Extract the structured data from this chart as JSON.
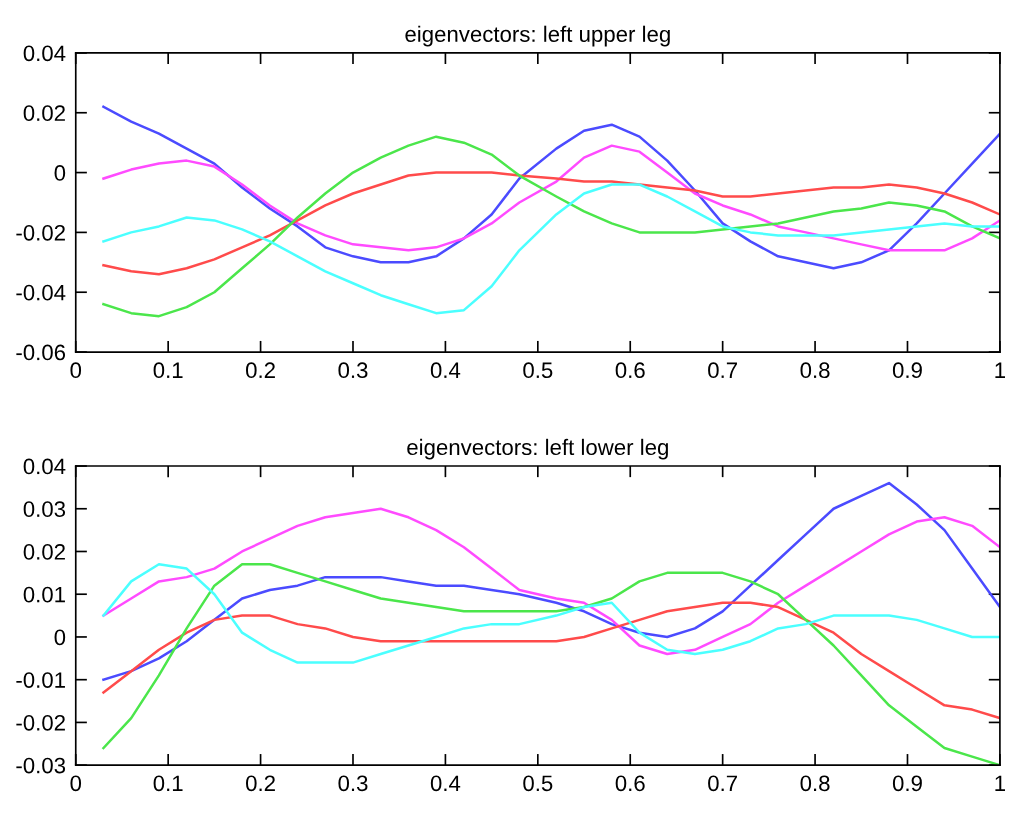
{
  "chart_data": [
    {
      "type": "line",
      "title": "eigenvectors: left upper leg",
      "x": [
        0.03,
        0.06,
        0.09,
        0.12,
        0.15,
        0.18,
        0.21,
        0.24,
        0.27,
        0.3,
        0.33,
        0.36,
        0.39,
        0.42,
        0.45,
        0.48,
        0.52,
        0.55,
        0.58,
        0.61,
        0.64,
        0.67,
        0.7,
        0.73,
        0.76,
        0.79,
        0.82,
        0.85,
        0.88,
        0.91,
        0.94,
        0.97,
        1.0
      ],
      "xlim": [
        0,
        1
      ],
      "xticks": [
        0,
        0.1,
        0.2,
        0.3,
        0.4,
        0.5,
        0.6,
        0.7,
        0.8,
        0.9,
        1
      ],
      "ylim": [
        -0.06,
        0.04
      ],
      "yticks": [
        -0.06,
        -0.04,
        -0.02,
        0,
        0.02,
        0.04
      ],
      "series": [
        {
          "color": "#4b4bff",
          "values": [
            0.022,
            0.017,
            0.013,
            0.008,
            0.003,
            -0.005,
            -0.012,
            -0.018,
            -0.025,
            -0.028,
            -0.03,
            -0.03,
            -0.028,
            -0.022,
            -0.014,
            -0.002,
            0.008,
            0.014,
            0.016,
            0.012,
            0.004,
            -0.006,
            -0.017,
            -0.023,
            -0.028,
            -0.03,
            -0.032,
            -0.03,
            -0.026,
            -0.017,
            -0.007,
            0.003,
            0.013
          ]
        },
        {
          "color": "#ff4bff",
          "values": [
            -0.002,
            0.001,
            0.003,
            0.004,
            0.002,
            -0.004,
            -0.011,
            -0.017,
            -0.021,
            -0.024,
            -0.025,
            -0.026,
            -0.025,
            -0.022,
            -0.017,
            -0.01,
            -0.003,
            0.005,
            0.009,
            0.007,
            0.0,
            -0.007,
            -0.011,
            -0.014,
            -0.018,
            -0.02,
            -0.022,
            -0.024,
            -0.026,
            -0.026,
            -0.026,
            -0.022,
            -0.016
          ]
        },
        {
          "color": "#ff4b4b",
          "values": [
            -0.031,
            -0.033,
            -0.034,
            -0.032,
            -0.029,
            -0.025,
            -0.021,
            -0.016,
            -0.011,
            -0.007,
            -0.004,
            -0.001,
            0.0,
            0.0,
            0.0,
            -0.001,
            -0.002,
            -0.003,
            -0.003,
            -0.004,
            -0.005,
            -0.006,
            -0.008,
            -0.008,
            -0.007,
            -0.006,
            -0.005,
            -0.005,
            -0.004,
            -0.005,
            -0.007,
            -0.01,
            -0.014
          ]
        },
        {
          "color": "#4be64b",
          "values": [
            -0.044,
            -0.047,
            -0.048,
            -0.045,
            -0.04,
            -0.032,
            -0.024,
            -0.015,
            -0.007,
            0.0,
            0.005,
            0.009,
            0.012,
            0.01,
            0.006,
            -0.001,
            -0.008,
            -0.013,
            -0.017,
            -0.02,
            -0.02,
            -0.02,
            -0.019,
            -0.018,
            -0.017,
            -0.015,
            -0.013,
            -0.012,
            -0.01,
            -0.011,
            -0.013,
            -0.018,
            -0.022
          ]
        },
        {
          "color": "#4bffff",
          "values": [
            -0.023,
            -0.02,
            -0.018,
            -0.015,
            -0.016,
            -0.019,
            -0.023,
            -0.028,
            -0.033,
            -0.037,
            -0.041,
            -0.044,
            -0.047,
            -0.046,
            -0.038,
            -0.026,
            -0.014,
            -0.007,
            -0.004,
            -0.004,
            -0.008,
            -0.013,
            -0.018,
            -0.02,
            -0.021,
            -0.021,
            -0.021,
            -0.02,
            -0.019,
            -0.018,
            -0.017,
            -0.018,
            -0.018
          ]
        }
      ]
    },
    {
      "type": "line",
      "title": "eigenvectors: left lower leg",
      "x": [
        0.03,
        0.06,
        0.09,
        0.12,
        0.15,
        0.18,
        0.21,
        0.24,
        0.27,
        0.3,
        0.33,
        0.36,
        0.39,
        0.42,
        0.45,
        0.48,
        0.52,
        0.55,
        0.58,
        0.61,
        0.64,
        0.67,
        0.7,
        0.73,
        0.76,
        0.79,
        0.82,
        0.85,
        0.88,
        0.91,
        0.94,
        0.97,
        1.0
      ],
      "xlim": [
        0,
        1
      ],
      "xticks": [
        0,
        0.1,
        0.2,
        0.3,
        0.4,
        0.5,
        0.6,
        0.7,
        0.8,
        0.9,
        1
      ],
      "ylim": [
        -0.03,
        0.04
      ],
      "yticks": [
        -0.03,
        -0.02,
        -0.01,
        0,
        0.01,
        0.02,
        0.03,
        0.04
      ],
      "series": [
        {
          "color": "#4b4bff",
          "values": [
            -0.01,
            -0.008,
            -0.005,
            -0.001,
            0.004,
            0.009,
            0.011,
            0.012,
            0.014,
            0.014,
            0.014,
            0.013,
            0.012,
            0.012,
            0.011,
            0.01,
            0.008,
            0.006,
            0.003,
            0.001,
            0.0,
            0.002,
            0.006,
            0.012,
            0.018,
            0.024,
            0.03,
            0.033,
            0.036,
            0.031,
            0.025,
            0.016,
            0.007
          ]
        },
        {
          "color": "#ff4bff",
          "values": [
            0.005,
            0.009,
            0.013,
            0.014,
            0.016,
            0.02,
            0.023,
            0.026,
            0.028,
            0.029,
            0.03,
            0.028,
            0.025,
            0.021,
            0.016,
            0.011,
            0.009,
            0.008,
            0.004,
            -0.002,
            -0.004,
            -0.003,
            0.0,
            0.003,
            0.008,
            0.012,
            0.016,
            0.02,
            0.024,
            0.027,
            0.028,
            0.026,
            0.021
          ]
        },
        {
          "color": "#ff4b4b",
          "values": [
            -0.013,
            -0.008,
            -0.003,
            0.001,
            0.004,
            0.005,
            0.005,
            0.003,
            0.002,
            0.0,
            -0.001,
            -0.001,
            -0.001,
            -0.001,
            -0.001,
            -0.001,
            -0.001,
            0.0,
            0.002,
            0.004,
            0.006,
            0.007,
            0.008,
            0.008,
            0.007,
            0.004,
            0.001,
            -0.004,
            -0.008,
            -0.012,
            -0.016,
            -0.017,
            -0.019
          ]
        },
        {
          "color": "#4be64b",
          "values": [
            -0.026,
            -0.019,
            -0.009,
            0.002,
            0.012,
            0.017,
            0.017,
            0.015,
            0.013,
            0.011,
            0.009,
            0.008,
            0.007,
            0.006,
            0.006,
            0.006,
            0.006,
            0.007,
            0.009,
            0.013,
            0.015,
            0.015,
            0.015,
            0.013,
            0.01,
            0.004,
            -0.002,
            -0.009,
            -0.016,
            -0.021,
            -0.026,
            -0.028,
            -0.03
          ]
        },
        {
          "color": "#4bffff",
          "values": [
            0.005,
            0.013,
            0.017,
            0.016,
            0.01,
            0.001,
            -0.003,
            -0.006,
            -0.006,
            -0.006,
            -0.004,
            -0.002,
            0.0,
            0.002,
            0.003,
            0.003,
            0.005,
            0.007,
            0.008,
            0.001,
            -0.003,
            -0.004,
            -0.003,
            -0.001,
            0.002,
            0.003,
            0.005,
            0.005,
            0.005,
            0.004,
            0.002,
            0.0,
            0.0
          ]
        }
      ]
    }
  ]
}
